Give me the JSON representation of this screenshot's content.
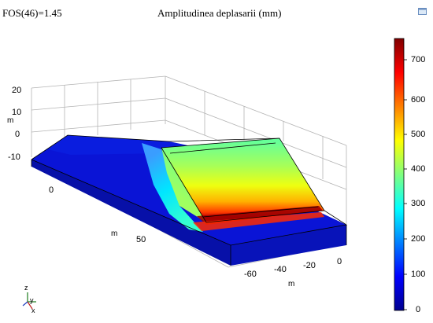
{
  "header": {
    "fos_label": "FOS(46)=1.45",
    "title": "Amplitudinea deplasarii (mm)"
  },
  "z_axis": {
    "label": "m",
    "ticks": [
      "20",
      "10",
      "0",
      "-10"
    ]
  },
  "y_axis": {
    "label": "m",
    "ticks": [
      "0",
      "50"
    ]
  },
  "x_axis": {
    "label": "m",
    "ticks": [
      "-60",
      "-40",
      "-20",
      "0"
    ]
  },
  "colorbar": {
    "colormap": "jet",
    "min": 0,
    "max": 780,
    "ticks": [
      "700",
      "600",
      "500",
      "400",
      "300",
      "200",
      "100",
      "0"
    ],
    "colors": [
      "#00008f",
      "#0000ff",
      "#00ffff",
      "#ffff00",
      "#ff0000",
      "#800000"
    ]
  },
  "triad": {
    "z": "z",
    "y": "y",
    "x": "x"
  },
  "icons": {
    "corner": "window-restore-icon"
  }
}
